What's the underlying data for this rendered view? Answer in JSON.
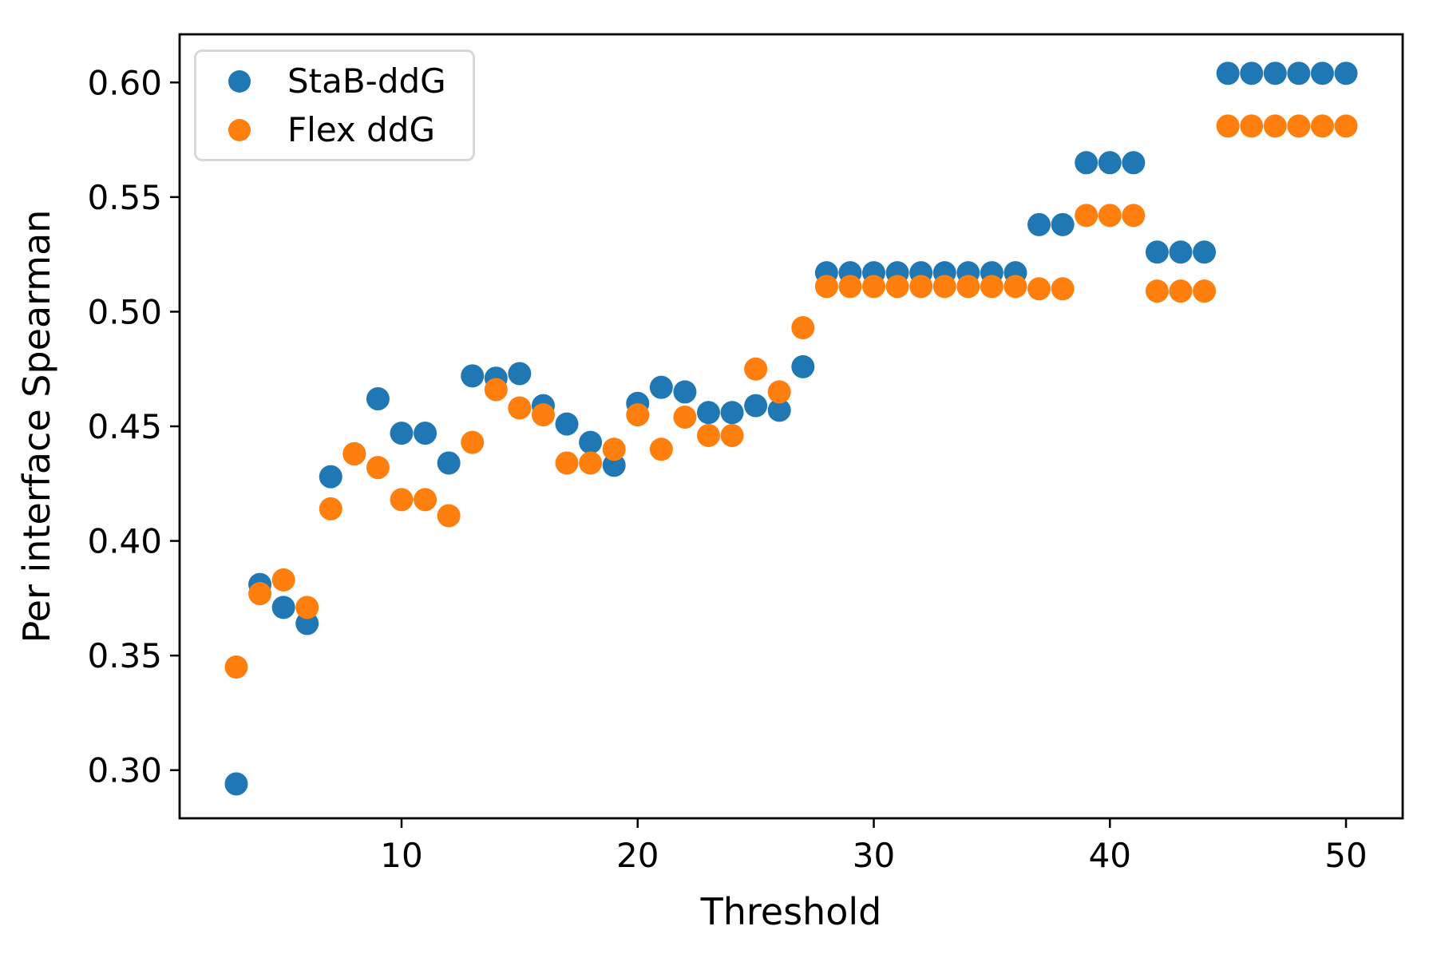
{
  "chart_data": {
    "type": "scatter",
    "title": "",
    "xlabel": "Threshold",
    "ylabel": "Per interface Spearman",
    "xlim": [
      0.6,
      52.4
    ],
    "ylim": [
      0.279,
      0.621
    ],
    "grid": false,
    "xticks": [
      {
        "value": 10,
        "label": "10"
      },
      {
        "value": 20,
        "label": "20"
      },
      {
        "value": 30,
        "label": "30"
      },
      {
        "value": 40,
        "label": "40"
      },
      {
        "value": 50,
        "label": "50"
      }
    ],
    "yticks": [
      {
        "value": 0.3,
        "label": "0.30"
      },
      {
        "value": 0.35,
        "label": "0.35"
      },
      {
        "value": 0.4,
        "label": "0.40"
      },
      {
        "value": 0.45,
        "label": "0.45"
      },
      {
        "value": 0.5,
        "label": "0.50"
      },
      {
        "value": 0.55,
        "label": "0.55"
      },
      {
        "value": 0.6,
        "label": "0.60"
      }
    ],
    "x": [
      3,
      4,
      5,
      6,
      7,
      8,
      9,
      10,
      11,
      12,
      13,
      14,
      15,
      16,
      17,
      18,
      19,
      20,
      21,
      22,
      23,
      24,
      25,
      26,
      27,
      28,
      29,
      30,
      31,
      32,
      33,
      34,
      35,
      36,
      37,
      38,
      39,
      40,
      41,
      42,
      43,
      44,
      45,
      46,
      47,
      48,
      49,
      50
    ],
    "series": [
      {
        "name": "StaB-ddG",
        "color": "#1f77b4",
        "values": [
          0.294,
          0.381,
          0.371,
          0.364,
          0.428,
          0.438,
          0.462,
          0.447,
          0.447,
          0.434,
          0.472,
          0.471,
          0.473,
          0.459,
          0.451,
          0.443,
          0.433,
          0.46,
          0.467,
          0.465,
          0.456,
          0.456,
          0.459,
          0.457,
          0.476,
          0.517,
          0.517,
          0.517,
          0.517,
          0.517,
          0.517,
          0.517,
          0.517,
          0.517,
          0.538,
          0.538,
          0.565,
          0.565,
          0.565,
          0.526,
          0.526,
          0.526,
          0.604,
          0.604,
          0.604,
          0.604,
          0.604,
          0.604
        ]
      },
      {
        "name": "Flex ddG",
        "color": "#ff7f0e",
        "values": [
          0.345,
          0.377,
          0.383,
          0.371,
          0.414,
          0.438,
          0.432,
          0.418,
          0.418,
          0.411,
          0.443,
          0.466,
          0.458,
          0.455,
          0.434,
          0.434,
          0.44,
          0.455,
          0.44,
          0.454,
          0.446,
          0.446,
          0.475,
          0.465,
          0.493,
          0.511,
          0.511,
          0.511,
          0.511,
          0.511,
          0.511,
          0.511,
          0.511,
          0.511,
          0.51,
          0.51,
          0.542,
          0.542,
          0.542,
          0.509,
          0.509,
          0.509,
          0.581,
          0.581,
          0.581,
          0.581,
          0.581,
          0.581
        ]
      }
    ],
    "legend": {
      "position": "upper left",
      "entries": [
        {
          "label": "StaB-ddG",
          "color": "#1f77b4"
        },
        {
          "label": "Flex ddG",
          "color": "#ff7f0e"
        }
      ]
    },
    "marker_radius_px": 14.5,
    "frame_color": "#000000",
    "background_color": "#ffffff"
  }
}
